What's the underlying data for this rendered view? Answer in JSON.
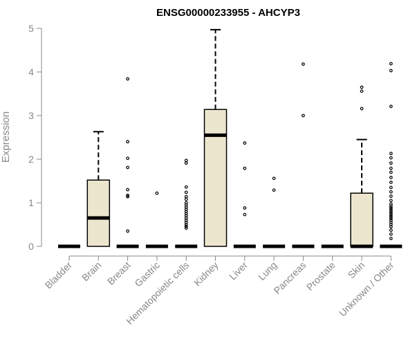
{
  "chart_data": {
    "type": "box",
    "title": "ENSG00000233955 - AHCYP3",
    "ylabel": "Expression",
    "xlabel": "",
    "ylim": [
      0,
      5
    ],
    "yticks": [
      0,
      1,
      2,
      3,
      4,
      5
    ],
    "grid": false,
    "box_fill": "#ede6cf",
    "categories": [
      "Bladder",
      "Brain",
      "Breast",
      "Gastric",
      "Hematopoietic cells",
      "Kidney",
      "Liver",
      "Lung",
      "Pancreas",
      "Prostate",
      "Skin",
      "Unknown / Other"
    ],
    "boxes": [
      {
        "q1": 0,
        "median": 0,
        "q3": 0,
        "whisker_low": 0,
        "whisker_high": 0,
        "outliers": []
      },
      {
        "q1": 0,
        "median": 0.65,
        "q3": 1.52,
        "whisker_low": 0,
        "whisker_high": 2.63,
        "outliers": []
      },
      {
        "q1": 0,
        "median": 0,
        "q3": 0,
        "whisker_low": 0,
        "whisker_high": 0,
        "outliers": [
          3.84,
          2.4,
          2.02,
          1.81,
          1.3,
          1.17,
          1.14,
          0.35
        ]
      },
      {
        "q1": 0,
        "median": 0,
        "q3": 0,
        "whisker_low": 0,
        "whisker_high": 0,
        "outliers": [
          1.22
        ]
      },
      {
        "q1": 0,
        "median": 0,
        "q3": 0,
        "whisker_low": 0,
        "whisker_high": 0,
        "outliers": [
          1.97,
          1.91,
          1.36,
          1.24,
          1.14,
          1.08,
          1.0,
          0.95,
          0.9,
          0.85,
          0.8,
          0.75,
          0.7,
          0.65,
          0.6,
          0.55,
          0.5,
          0.46,
          0.42
        ]
      },
      {
        "q1": 0,
        "median": 2.55,
        "q3": 3.14,
        "whisker_low": 0,
        "whisker_high": 4.97,
        "outliers": []
      },
      {
        "q1": 0,
        "median": 0,
        "q3": 0,
        "whisker_low": 0,
        "whisker_high": 0,
        "outliers": [
          2.37,
          1.79,
          0.88,
          0.73
        ]
      },
      {
        "q1": 0,
        "median": 0,
        "q3": 0,
        "whisker_low": 0,
        "whisker_high": 0,
        "outliers": [
          1.56,
          1.29
        ]
      },
      {
        "q1": 0,
        "median": 0,
        "q3": 0,
        "whisker_low": 0,
        "whisker_high": 0,
        "outliers": [
          4.18,
          3.0
        ]
      },
      {
        "q1": 0,
        "median": 0,
        "q3": 0,
        "whisker_low": 0,
        "whisker_high": 0,
        "outliers": []
      },
      {
        "q1": 0,
        "median": 0,
        "q3": 1.22,
        "whisker_low": 0,
        "whisker_high": 2.45,
        "outliers": [
          3.65,
          3.56,
          3.16
        ]
      },
      {
        "q1": 0,
        "median": 0,
        "q3": 0,
        "whisker_low": 0,
        "whisker_high": 0,
        "outliers": [
          4.19,
          4.03,
          3.21,
          2.13,
          2.03,
          1.91,
          1.79,
          1.7,
          1.58,
          1.47,
          1.35,
          1.25,
          1.15,
          1.05,
          0.97,
          0.92,
          0.88,
          0.84,
          0.8,
          0.76,
          0.72,
          0.68,
          0.64,
          0.6,
          0.55,
          0.5,
          0.45,
          0.37,
          0.28,
          0.18
        ]
      }
    ]
  }
}
